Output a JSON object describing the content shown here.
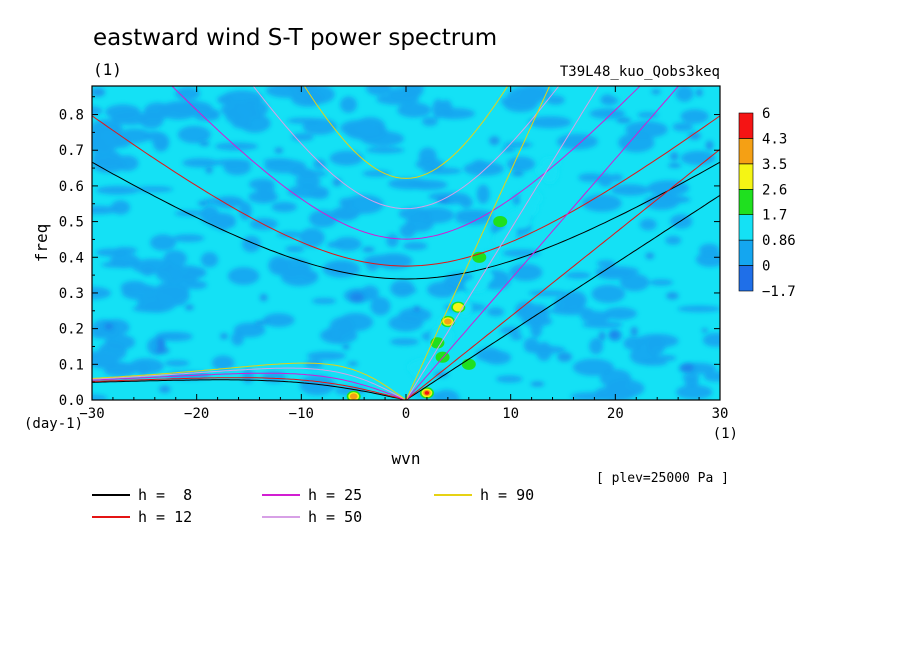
{
  "chart_data": {
    "type": "heatmap",
    "title": "eastward wind S-T power spectrum",
    "subtitle_left": "(1)",
    "subtitle_right": "T39L48_kuo_Qobs3keq",
    "xlabel": "wvn",
    "x_unit": "(1)",
    "ylabel": "freq",
    "y_unit": "(day-1)",
    "xlim": [
      -30,
      30
    ],
    "ylim": [
      0,
      0.88
    ],
    "x_ticks": [
      -30,
      -20,
      -10,
      0,
      10,
      20,
      30
    ],
    "y_ticks": [
      0.0,
      0.1,
      0.2,
      0.3,
      0.4,
      0.5,
      0.6,
      0.7,
      0.8
    ],
    "annotation": "[ plev=25000 Pa ]",
    "colorbar": {
      "labels": [
        "-1.7",
        "0",
        "0.86",
        "1.7",
        "2.6",
        "3.5",
        "4.3",
        "6"
      ],
      "colors": [
        "#1f6fe8",
        "#14a6f0",
        "#14e1f5",
        "#1fe01f",
        "#f5f514",
        "#f5a014",
        "#f51414"
      ],
      "background_color": "#14e1f5",
      "low_color": "#14a6f0"
    },
    "dispersion_curves": [
      {
        "label": "h =  8",
        "h": 8,
        "color": "#000000"
      },
      {
        "label": "h = 12",
        "h": 12,
        "color": "#e41414"
      },
      {
        "label": "h = 25",
        "h": 25,
        "color": "#d21ed2"
      },
      {
        "label": "h = 50",
        "h": 50,
        "color": "#d7a0e6"
      },
      {
        "label": "h = 90",
        "h": 90,
        "color": "#e6d214"
      }
    ],
    "hotspots": [
      {
        "k": 2,
        "f": 0.02,
        "level": 6
      },
      {
        "k": -5,
        "f": 0.01,
        "level": 4.3
      },
      {
        "k": 4,
        "f": 0.22,
        "level": 4.3
      },
      {
        "k": 5,
        "f": 0.26,
        "level": 3.5
      },
      {
        "k": 3,
        "f": 0.16,
        "level": 2.6
      },
      {
        "k": 6,
        "f": 0.1,
        "level": 2.6
      },
      {
        "k": 3.5,
        "f": 0.12,
        "level": 2.6
      },
      {
        "k": 7,
        "f": 0.4,
        "level": 1.7
      },
      {
        "k": 9,
        "f": 0.5,
        "level": 1.7
      }
    ]
  }
}
